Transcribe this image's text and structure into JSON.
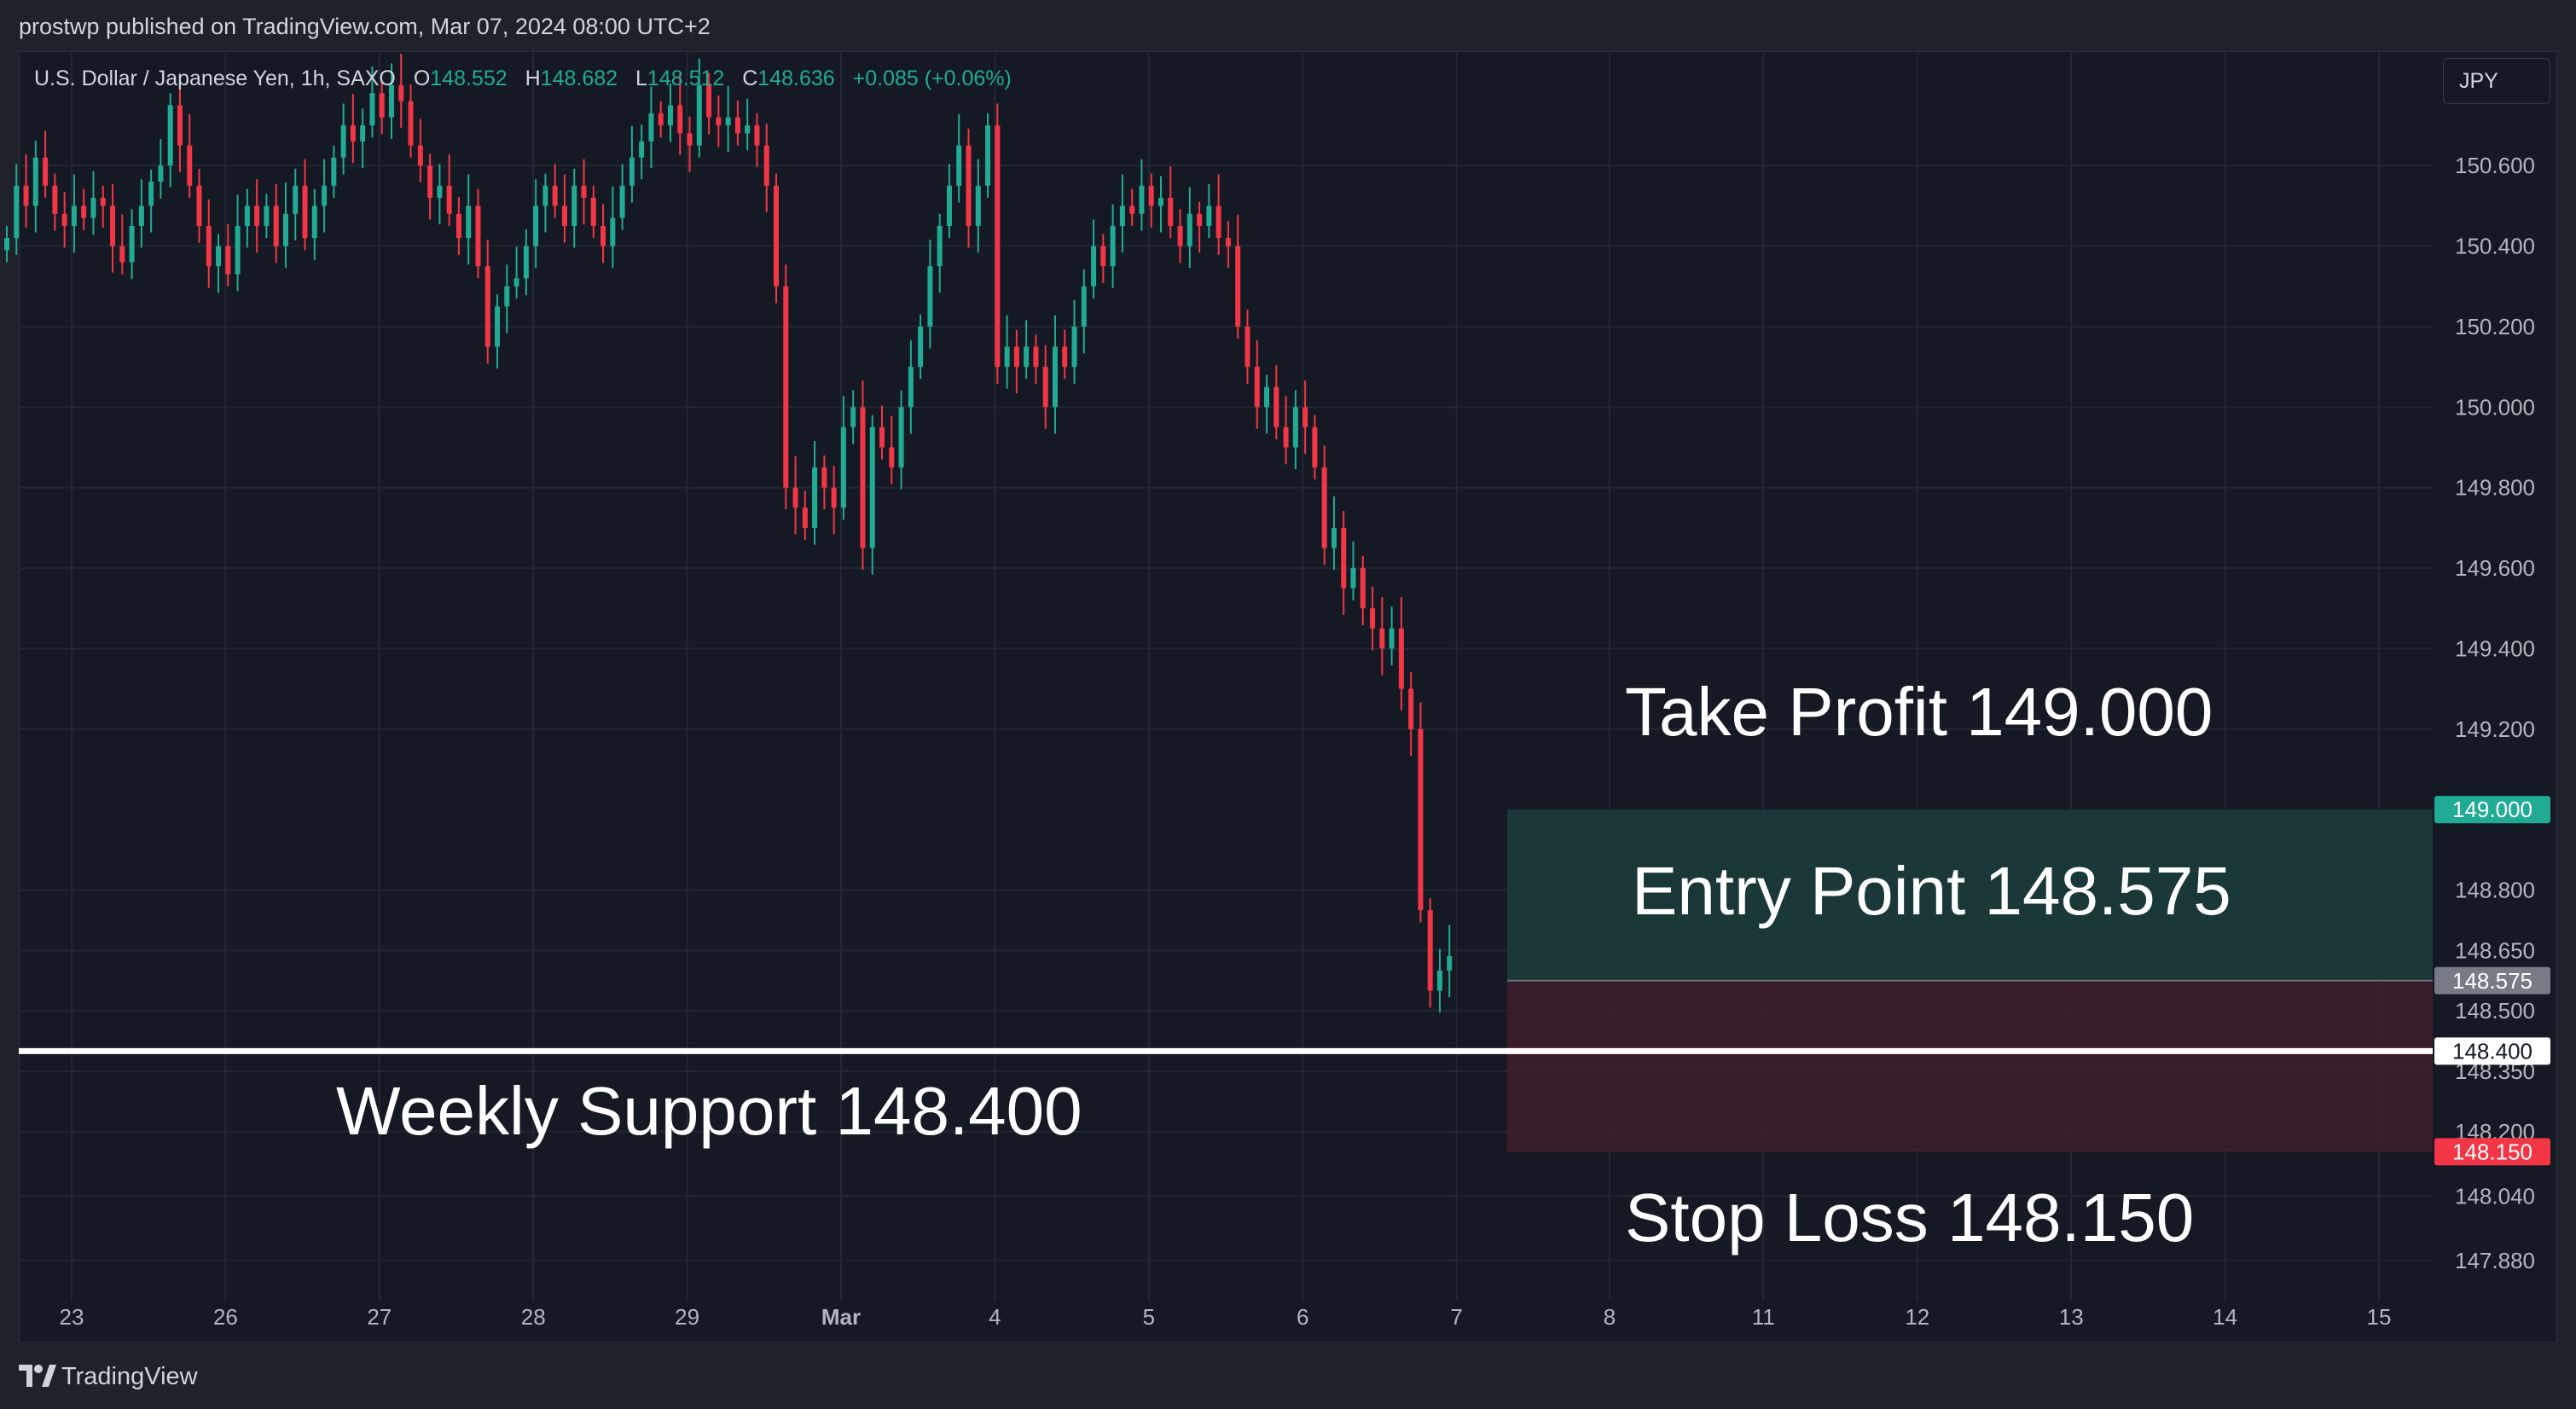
{
  "header": {
    "published": "prostwp published on TradingView.com, Mar 07, 2024 08:00 UTC+2"
  },
  "legend": {
    "symbol": "U.S. Dollar / Japanese Yen, 1h, SAXO",
    "open_label": "O",
    "open": "148.552",
    "high_label": "H",
    "high": "148.682",
    "low_label": "L",
    "low": "148.512",
    "close_label": "C",
    "close": "148.636",
    "change": "+0.085 (+0.06%)"
  },
  "currency_button": "JPY",
  "footer": {
    "brand": "TradingView"
  },
  "colors": {
    "up": "#22ab94",
    "down": "#f23645",
    "grid": "#232733",
    "background": "#151924",
    "profit_zone": "#1a3a3a",
    "loss_zone": "#3a1f2b",
    "support_line": "#ffffff"
  },
  "chart_data": {
    "type": "candlestick",
    "instrument": "U.S. Dollar / Japanese Yen, 1h, SAXO",
    "x_tick_labels": [
      "23",
      "26",
      "27",
      "28",
      "29",
      "Mar",
      "4",
      "5",
      "6",
      "7",
      "8",
      "11",
      "12",
      "13",
      "14",
      "15"
    ],
    "y_tick_labels": [
      "150.600",
      "150.400",
      "150.200",
      "150.000",
      "149.800",
      "149.600",
      "149.400",
      "149.200",
      "148.800",
      "148.650",
      "148.500",
      "148.350",
      "148.200",
      "148.040",
      "147.880"
    ],
    "ylim": [
      147.78,
      150.88
    ],
    "price_tags": [
      {
        "value": "149.000",
        "kind": "take-profit"
      },
      {
        "value": "148.575",
        "kind": "entry"
      },
      {
        "value": "148.400",
        "kind": "support"
      },
      {
        "value": "148.150",
        "kind": "stop-loss"
      }
    ],
    "series": [
      {
        "day": "23",
        "closes": [
          150.42,
          150.55,
          150.5,
          150.62,
          150.55,
          150.48,
          150.45,
          150.5,
          150.47,
          150.52,
          150.5,
          150.4,
          150.36,
          150.45,
          150.5,
          150.56
        ]
      },
      {
        "day": "26",
        "closes": [
          150.6,
          150.75,
          150.65,
          150.55,
          150.45,
          150.35,
          150.4,
          150.33,
          150.45,
          150.5,
          150.45,
          150.5,
          150.4,
          150.48,
          150.55,
          150.42
        ]
      },
      {
        "day": "27",
        "closes": [
          150.5,
          150.55,
          150.62,
          150.7,
          150.66,
          150.7,
          150.78,
          150.72,
          150.8,
          150.76,
          150.65,
          150.6,
          150.52,
          150.55,
          150.48,
          150.42
        ]
      },
      {
        "day": "28",
        "closes": [
          150.5,
          150.35,
          150.15,
          150.25,
          150.3,
          150.32,
          150.4,
          150.5,
          150.55,
          150.5,
          150.45,
          150.55,
          150.52,
          150.45,
          150.4,
          150.47
        ]
      },
      {
        "day": "29",
        "closes": [
          150.55,
          150.62,
          150.66,
          150.73,
          150.7,
          150.75,
          150.68,
          150.65,
          150.8,
          150.72,
          150.7,
          150.72,
          150.68,
          150.7,
          150.65,
          150.55
        ]
      },
      {
        "day": "Mar",
        "closes": [
          150.3,
          149.8,
          149.75,
          149.7,
          149.85,
          149.8,
          149.75,
          149.95,
          150.0,
          149.65,
          149.95,
          149.9,
          149.85,
          150.0,
          150.1,
          150.2
        ]
      },
      {
        "day": "4",
        "closes": [
          150.35,
          150.45,
          150.55,
          150.65,
          150.45,
          150.55,
          150.7,
          150.1,
          150.15,
          150.1,
          150.15,
          150.1,
          150.0,
          150.15,
          150.1,
          150.2
        ]
      },
      {
        "day": "5",
        "closes": [
          150.3,
          150.4,
          150.35,
          150.45,
          150.5,
          150.48,
          150.55,
          150.5,
          150.52,
          150.45,
          150.4,
          150.48,
          150.45,
          150.5,
          150.42,
          150.4
        ]
      },
      {
        "day": "6",
        "closes": [
          150.2,
          150.1,
          150.0,
          150.05,
          149.95,
          149.9,
          150.0,
          149.95,
          149.85,
          149.65,
          149.7,
          149.55,
          149.6,
          149.5,
          149.45,
          149.4
        ]
      },
      {
        "day": "7",
        "closes": [
          149.45,
          149.3,
          149.2,
          148.75,
          148.55,
          148.6,
          148.636
        ]
      }
    ]
  },
  "annotations": {
    "take_profit": "Take Profit 149.000",
    "entry": "Entry Point 148.575",
    "support": "Weekly Support 148.400",
    "stop_loss": "Stop Loss 148.150"
  },
  "levels": {
    "take_profit": 149.0,
    "entry": 148.575,
    "support": 148.4,
    "stop_loss": 148.15
  }
}
